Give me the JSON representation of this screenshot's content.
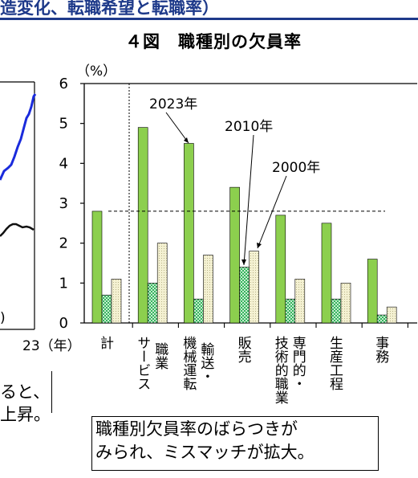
{
  "header_fragment": "造変化、転職希望と転職率）",
  "chart_data": {
    "type": "bar",
    "title": "４図　職種別の欠員率",
    "ylabel": "（%）",
    "ylim": [
      0,
      6
    ],
    "yticks": [
      0,
      1,
      2,
      3,
      4,
      5,
      6
    ],
    "categories": [
      "計",
      "サービス職業",
      "機械運転・輸送",
      "販売",
      "専門的・技術的職業",
      "生産工程",
      "事務"
    ],
    "category_label_columns": [
      [
        "計"
      ],
      [
        "サービス",
        "職業"
      ],
      [
        "機械運転",
        "輸送・"
      ],
      [
        "販売"
      ],
      [
        "技術的職業",
        "専門的・"
      ],
      [
        "生産工程"
      ],
      [
        "事務"
      ]
    ],
    "series": [
      {
        "name": "2023年",
        "values": [
          2.8,
          4.9,
          4.5,
          3.4,
          2.7,
          2.5,
          1.6
        ],
        "color": "#8ccf4e"
      },
      {
        "name": "2010年",
        "values": [
          0.7,
          1.0,
          0.6,
          1.4,
          0.6,
          0.6,
          0.2
        ],
        "color": "#2eb35c"
      },
      {
        "name": "2000年",
        "values": [
          1.1,
          2.0,
          1.7,
          1.8,
          1.1,
          1.0,
          0.4
        ],
        "color": "#f4f1d2"
      }
    ],
    "reference_line": 2.8,
    "annotations": [
      "2023年",
      "2010年",
      "2000年"
    ]
  },
  "left_chart_fragment": {
    "x_tick_label": "23（年）",
    "y_paren": ")",
    "colors": {
      "blue_series": "#1a2bdc",
      "black_series": "#111111"
    }
  },
  "text_snippet": {
    "line1": "ると、",
    "line2": "上昇。"
  },
  "callout": {
    "line1": "職種別欠員率のばらつきが",
    "line2": "みられ、ミスマッチが拡大。"
  }
}
